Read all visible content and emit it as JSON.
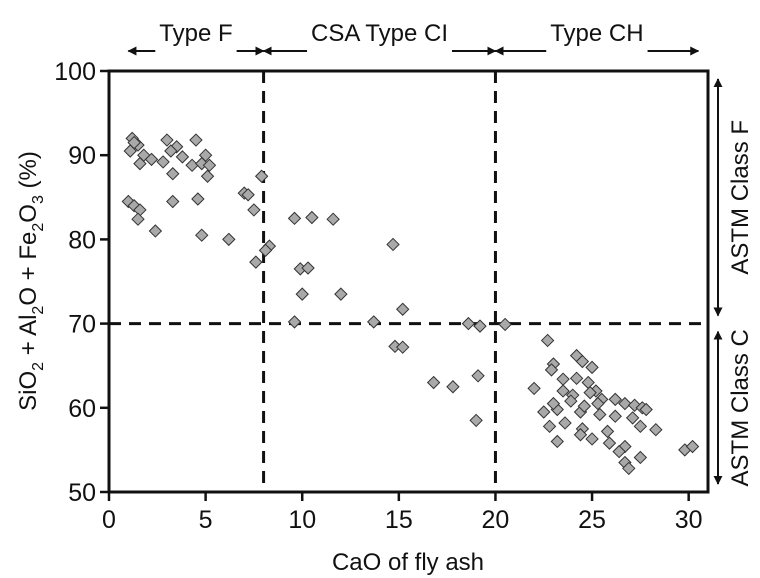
{
  "chart_data": {
    "type": "scatter",
    "xlabel": "CaO of fly ash",
    "ylabel": "SiO2 + Al2O + Fe2O3 (%)",
    "ylabel_parts": {
      "p1": "SiO",
      "s1": "2",
      "p2": " + Al",
      "s2": "2",
      "p3": "O + Fe",
      "s3": "2",
      "p4": "O",
      "s4": "3",
      "p5": " (%)"
    },
    "xlim": [
      0,
      31
    ],
    "ylim": [
      50,
      100
    ],
    "xticks": [
      0,
      5,
      10,
      15,
      20,
      25,
      30
    ],
    "yticks": [
      50,
      60,
      70,
      80,
      90,
      100
    ],
    "grid": false,
    "divider_x": [
      8,
      20
    ],
    "divider_y": 70,
    "ranges_top": [
      {
        "label": "Type F",
        "x_start": 1,
        "x_end": 8
      },
      {
        "label": "CSA Type CI",
        "x_start": 8,
        "x_end": 20
      },
      {
        "label": "Type CH",
        "x_start": 20,
        "x_end": 30.5
      }
    ],
    "ranges_right": [
      {
        "label": "ASTM Class F",
        "y_start": 70,
        "y_end": 100
      },
      {
        "label": "ASTM Class C",
        "y_start": 50,
        "y_end": 70
      }
    ],
    "marker_color": "#a9a9a9",
    "points": [
      [
        1.2,
        92.0
      ],
      [
        1.5,
        91.2
      ],
      [
        1.1,
        90.5
      ],
      [
        1.8,
        90.0
      ],
      [
        1.6,
        89.0
      ],
      [
        2.2,
        89.5
      ],
      [
        1.3,
        91.5
      ],
      [
        3.0,
        91.8
      ],
      [
        3.5,
        91.0
      ],
      [
        3.2,
        90.5
      ],
      [
        4.5,
        91.8
      ],
      [
        3.8,
        89.8
      ],
      [
        3.3,
        87.8
      ],
      [
        2.8,
        89.2
      ],
      [
        4.3,
        88.8
      ],
      [
        4.8,
        89.0
      ],
      [
        5.0,
        90.0
      ],
      [
        5.2,
        88.8
      ],
      [
        5.1,
        87.5
      ],
      [
        7.0,
        85.5
      ],
      [
        7.2,
        85.3
      ],
      [
        7.9,
        87.5
      ],
      [
        1.0,
        84.5
      ],
      [
        1.3,
        84.0
      ],
      [
        1.6,
        83.5
      ],
      [
        1.5,
        82.4
      ],
      [
        3.3,
        84.5
      ],
      [
        4.6,
        84.8
      ],
      [
        7.5,
        83.5
      ],
      [
        2.4,
        81.0
      ],
      [
        4.8,
        80.5
      ],
      [
        6.2,
        80.0
      ],
      [
        8.3,
        79.2
      ],
      [
        8.1,
        78.7
      ],
      [
        7.6,
        77.3
      ],
      [
        9.6,
        82.5
      ],
      [
        10.5,
        82.6
      ],
      [
        11.6,
        82.4
      ],
      [
        9.9,
        76.5
      ],
      [
        10.3,
        76.6
      ],
      [
        10.0,
        73.5
      ],
      [
        12.0,
        73.5
      ],
      [
        9.6,
        70.2
      ],
      [
        13.7,
        70.2
      ],
      [
        14.7,
        79.4
      ],
      [
        15.2,
        71.7
      ],
      [
        14.8,
        67.3
      ],
      [
        15.2,
        67.2
      ],
      [
        16.8,
        63.0
      ],
      [
        17.8,
        62.5
      ],
      [
        18.6,
        70.0
      ],
      [
        19.2,
        69.7
      ],
      [
        20.5,
        69.9
      ],
      [
        19.1,
        63.8
      ],
      [
        19.0,
        58.5
      ],
      [
        22.7,
        68.0
      ],
      [
        23.0,
        65.2
      ],
      [
        22.9,
        64.5
      ],
      [
        23.5,
        63.4
      ],
      [
        22.0,
        62.3
      ],
      [
        24.2,
        66.2
      ],
      [
        24.5,
        65.5
      ],
      [
        25.0,
        64.8
      ],
      [
        24.2,
        63.5
      ],
      [
        24.8,
        63.0
      ],
      [
        23.5,
        62.0
      ],
      [
        24.0,
        61.5
      ],
      [
        25.2,
        62.0
      ],
      [
        25.5,
        61.0
      ],
      [
        24.9,
        61.8
      ],
      [
        23.9,
        60.8
      ],
      [
        25.3,
        60.5
      ],
      [
        26.2,
        61.0
      ],
      [
        26.7,
        60.5
      ],
      [
        27.2,
        60.3
      ],
      [
        27.6,
        60.0
      ],
      [
        22.5,
        59.5
      ],
      [
        23.2,
        59.8
      ],
      [
        24.4,
        59.5
      ],
      [
        25.4,
        59.2
      ],
      [
        26.2,
        59.0
      ],
      [
        27.1,
        58.8
      ],
      [
        23.6,
        58.2
      ],
      [
        24.5,
        57.5
      ],
      [
        25.8,
        57.2
      ],
      [
        27.5,
        57.8
      ],
      [
        28.3,
        57.4
      ],
      [
        22.8,
        57.8
      ],
      [
        23.2,
        56.0
      ],
      [
        25.0,
        56.3
      ],
      [
        25.9,
        55.8
      ],
      [
        26.7,
        55.4
      ],
      [
        24.4,
        56.8
      ],
      [
        26.4,
        54.8
      ],
      [
        27.5,
        54.1
      ],
      [
        26.7,
        53.5
      ],
      [
        26.9,
        52.8
      ],
      [
        29.8,
        55.0
      ],
      [
        30.2,
        55.4
      ],
      [
        27.8,
        59.8
      ],
      [
        24.6,
        60.2
      ],
      [
        23.0,
        60.5
      ]
    ]
  }
}
